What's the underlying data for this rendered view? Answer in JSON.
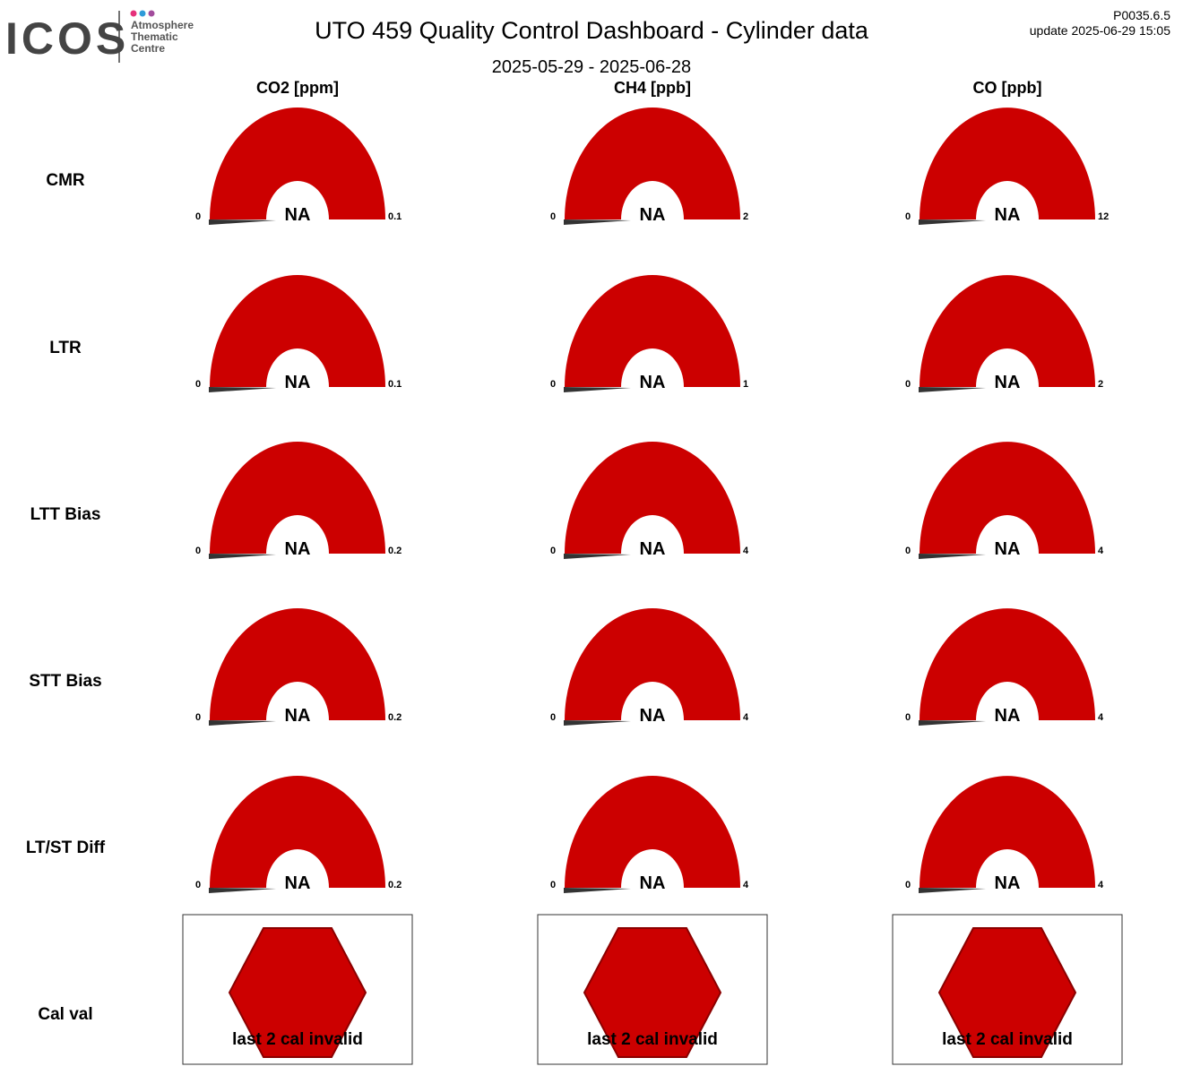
{
  "header": {
    "logo": "ICOS",
    "logo_sub": [
      "Atmosphere",
      "Thematic",
      "Centre"
    ],
    "title": "UTO 459 Quality Control Dashboard - Cylinder data",
    "subtitle": "2025-05-29 - 2025-06-28",
    "version": "P0035.6.5",
    "update": "update  2025-06-29 15:05"
  },
  "columns": [
    "CO2 [ppm]",
    "CH4 [ppb]",
    "CO [ppb]"
  ],
  "rows": [
    "CMR",
    "LTR",
    "LTT Bias",
    "STT Bias",
    "LT/ST Diff",
    "Cal val"
  ],
  "gauges": [
    [
      {
        "min": 0,
        "max": 0.1,
        "value": "NA"
      },
      {
        "min": 0,
        "max": 2,
        "value": "NA"
      },
      {
        "min": 0,
        "max": 12,
        "value": "NA"
      }
    ],
    [
      {
        "min": 0,
        "max": 0.1,
        "value": "NA"
      },
      {
        "min": 0,
        "max": 1,
        "value": "NA"
      },
      {
        "min": 0,
        "max": 2,
        "value": "NA"
      }
    ],
    [
      {
        "min": 0,
        "max": 0.2,
        "value": "NA"
      },
      {
        "min": 0,
        "max": 4,
        "value": "NA"
      },
      {
        "min": 0,
        "max": 4,
        "value": "NA"
      }
    ],
    [
      {
        "min": 0,
        "max": 0.2,
        "value": "NA"
      },
      {
        "min": 0,
        "max": 4,
        "value": "NA"
      },
      {
        "min": 0,
        "max": 4,
        "value": "NA"
      }
    ],
    [
      {
        "min": 0,
        "max": 0.2,
        "value": "NA"
      },
      {
        "min": 0,
        "max": 4,
        "value": "NA"
      },
      {
        "min": 0,
        "max": 4,
        "value": "NA"
      }
    ]
  ],
  "cal_val": [
    "last 2 cal invalid",
    "last 2 cal invalid",
    "last 2 cal invalid"
  ]
}
